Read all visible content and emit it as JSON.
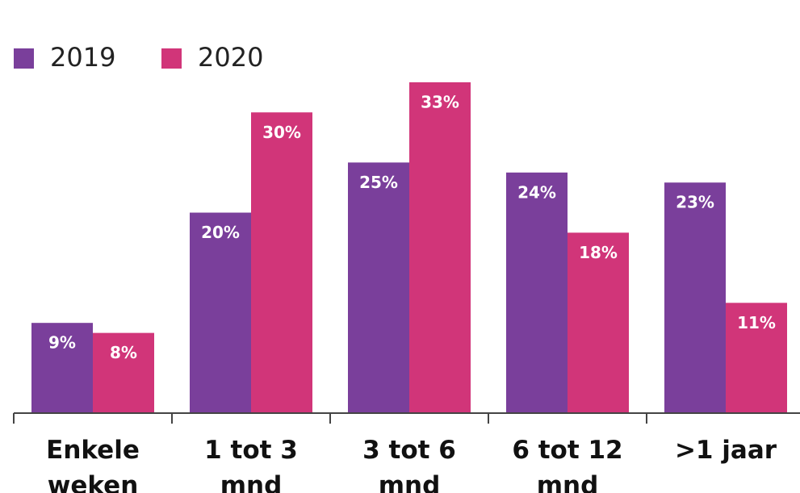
{
  "chart_data": {
    "type": "bar",
    "categories": [
      "Enkele weken",
      "1 tot 3 mnd",
      "3 tot 6 mnd",
      "6 tot 12 mnd",
      ">1 jaar"
    ],
    "series": [
      {
        "name": "2019",
        "color": "#7a3f9b",
        "values": [
          9,
          20,
          25,
          24,
          23
        ],
        "value_labels": [
          "9%",
          "20%",
          "25%",
          "24%",
          "23%"
        ]
      },
      {
        "name": "2020",
        "color": "#d13579",
        "values": [
          8,
          30,
          33,
          18,
          11
        ],
        "value_labels": [
          "8%",
          "30%",
          "33%",
          "18%",
          "11%"
        ]
      }
    ],
    "ylim": [
      0,
      33
    ]
  }
}
